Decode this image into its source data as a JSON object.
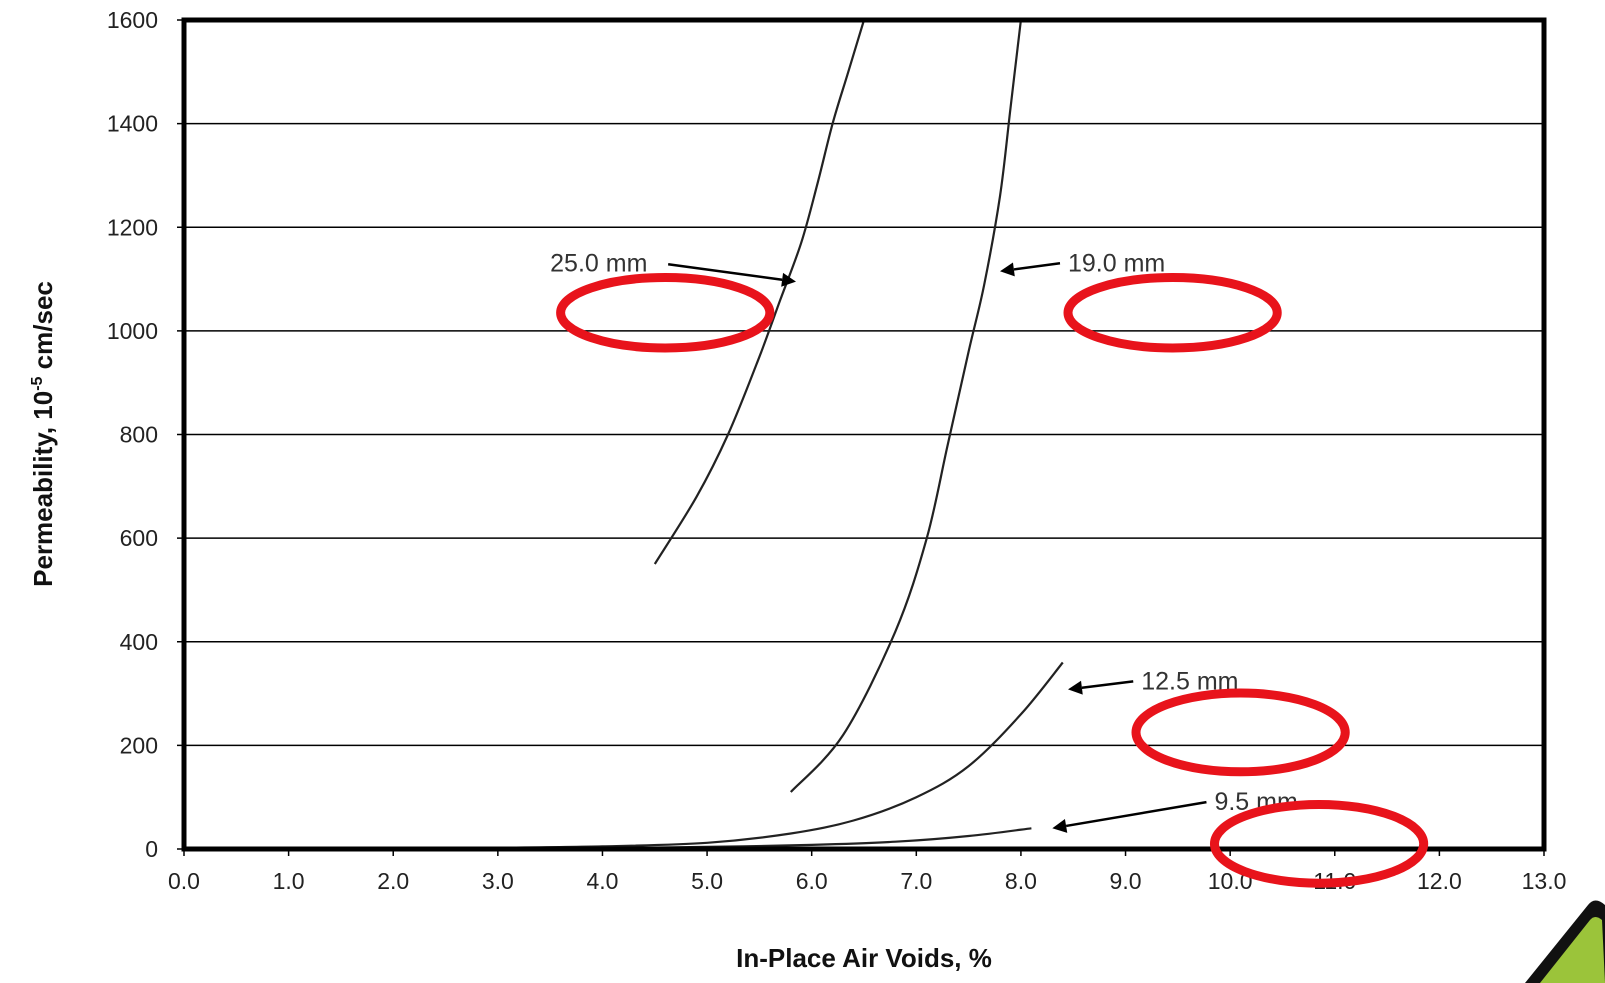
{
  "chart_data": {
    "type": "line",
    "title": "",
    "xlabel": "In-Place Air Voids, %",
    "ylabel_main": "Permeability, 10",
    "ylabel_exp": "-5",
    "ylabel_unit": " cm/sec",
    "xlim": [
      0,
      13
    ],
    "ylim": [
      0,
      1600
    ],
    "x_ticks": [
      "0.0",
      "1.0",
      "2.0",
      "3.0",
      "4.0",
      "5.0",
      "6.0",
      "7.0",
      "8.0",
      "9.0",
      "10.0",
      "11.0",
      "12.0",
      "13.0"
    ],
    "y_ticks": [
      "0",
      "200",
      "400",
      "600",
      "800",
      "1000",
      "1200",
      "1400",
      "1600"
    ],
    "grid": "horizontal",
    "series": [
      {
        "name": "25.0 mm",
        "x": [
          4.5,
          4.9,
          5.2,
          5.5,
          5.7,
          5.9,
          6.05,
          6.2,
          6.35,
          6.5
        ],
        "y": [
          550,
          680,
          800,
          950,
          1060,
          1170,
          1280,
          1400,
          1500,
          1600
        ]
      },
      {
        "name": "19.0 mm",
        "x": [
          5.8,
          6.3,
          6.8,
          7.1,
          7.3,
          7.5,
          7.65,
          7.8,
          7.9,
          8.0
        ],
        "y": [
          110,
          220,
          420,
          600,
          780,
          960,
          1090,
          1260,
          1430,
          1600
        ]
      },
      {
        "name": "12.5 mm",
        "x": [
          2.8,
          4.0,
          5.0,
          5.8,
          6.4,
          7.0,
          7.5,
          8.0,
          8.4
        ],
        "y": [
          2,
          5,
          12,
          30,
          55,
          100,
          160,
          260,
          360
        ]
      },
      {
        "name": "9.5 mm",
        "x": [
          2.8,
          4.0,
          5.0,
          6.0,
          6.8,
          7.5,
          8.1
        ],
        "y": [
          0,
          2,
          4,
          8,
          14,
          25,
          40
        ]
      }
    ],
    "annotations": [
      {
        "text": "25.0 mm",
        "text_x": 3.5,
        "text_y": 1115,
        "arrow_to_x": 5.85,
        "arrow_to_y": 1095,
        "arrow_dir": "right"
      },
      {
        "text": "19.0 mm",
        "text_x": 8.45,
        "text_y": 1115,
        "arrow_to_x": 7.8,
        "arrow_to_y": 1115,
        "arrow_dir": "left"
      },
      {
        "text": "12.5 mm",
        "text_x": 9.15,
        "text_y": 308,
        "arrow_to_x": 8.45,
        "arrow_to_y": 308,
        "arrow_dir": "left"
      },
      {
        "text": "9.5 mm",
        "text_x": 9.85,
        "text_y": 75,
        "arrow_to_x": 8.3,
        "arrow_to_y": 40,
        "arrow_dir": "left"
      }
    ],
    "highlights": [
      {
        "cx": 4.6,
        "cy": 1035,
        "rx": 1.0,
        "ry": 68
      },
      {
        "cx": 9.45,
        "cy": 1035,
        "rx": 1.0,
        "ry": 68
      },
      {
        "cx": 10.1,
        "cy": 225,
        "rx": 1.0,
        "ry": 76
      },
      {
        "cx": 10.85,
        "cy": 10,
        "rx": 1.0,
        "ry": 76
      }
    ],
    "colors": {
      "line": "#222222",
      "grid": "#000000",
      "highlight": "#e8131b",
      "corner_badge": "#9bc43a"
    }
  }
}
